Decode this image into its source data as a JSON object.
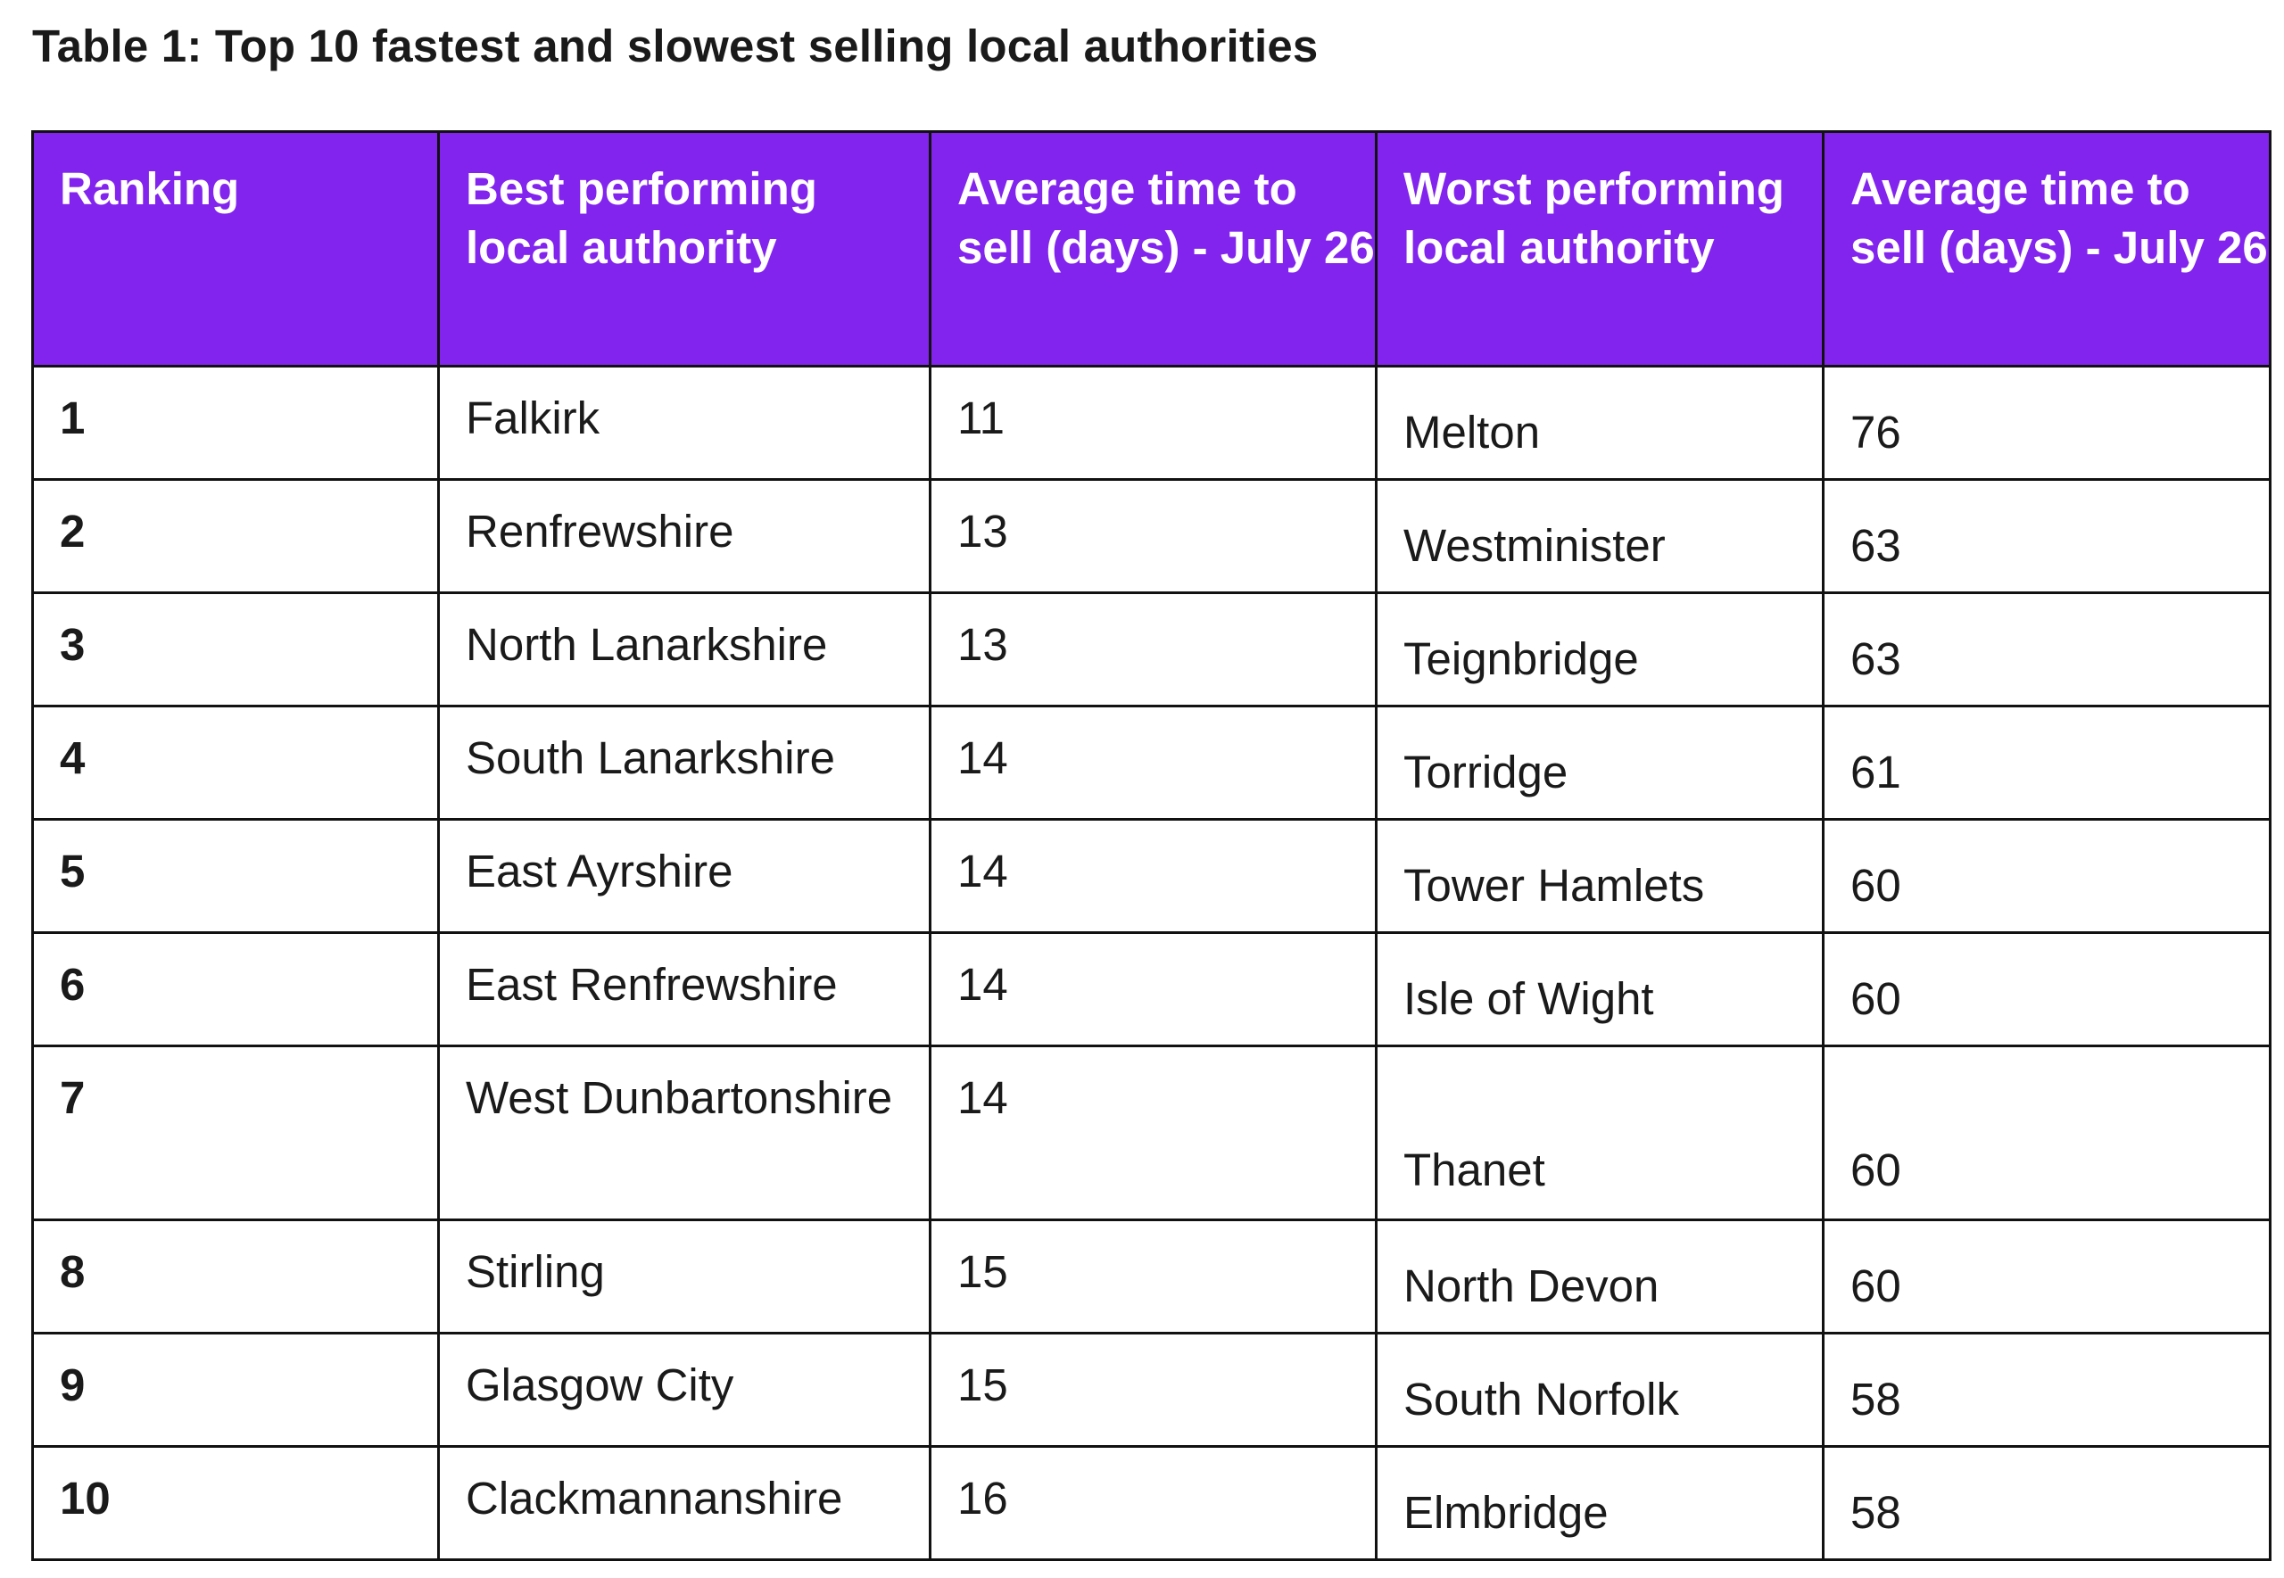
{
  "title": "Table 1: Top 10 fastest and slowest selling local authorities",
  "headers": [
    "Ranking",
    "Best performing local authority",
    "Average time to sell (days) - July 26",
    "Worst performing local authority",
    "Average time to sell (days) - July 26"
  ],
  "rows": [
    {
      "rank": "1",
      "best": "Falkirk",
      "best_days": "11",
      "worst": "Melton",
      "worst_days": "76"
    },
    {
      "rank": "2",
      "best": "Renfrewshire",
      "best_days": "13",
      "worst": "Westminister",
      "worst_days": "63"
    },
    {
      "rank": "3",
      "best": "North Lanarkshire",
      "best_days": "13",
      "worst": "Teignbridge",
      "worst_days": "63"
    },
    {
      "rank": "4",
      "best": "South Lanarkshire",
      "best_days": "14",
      "worst": "Torridge",
      "worst_days": "61"
    },
    {
      "rank": "5",
      "best": "East Ayrshire",
      "best_days": "14",
      "worst": "Tower Hamlets",
      "worst_days": "60"
    },
    {
      "rank": "6",
      "best": "East Renfrewshire",
      "best_days": "14",
      "worst": "Isle of Wight",
      "worst_days": "60"
    },
    {
      "rank": "7",
      "best": "West Dunbartonshire",
      "best_days": "14",
      "worst": "Thanet",
      "worst_days": "60"
    },
    {
      "rank": "8",
      "best": "Stirling",
      "best_days": "15",
      "worst": "North Devon",
      "worst_days": "60"
    },
    {
      "rank": "9",
      "best": "Glasgow City",
      "best_days": "15",
      "worst": "South Norfolk",
      "worst_days": "58"
    },
    {
      "rank": "10",
      "best": "Clackmannanshire",
      "best_days": "16",
      "worst": "Elmbridge",
      "worst_days": "58"
    }
  ],
  "colors": {
    "header_background": "#8223ee",
    "header_text": "#ffffff",
    "border": "#111111"
  }
}
